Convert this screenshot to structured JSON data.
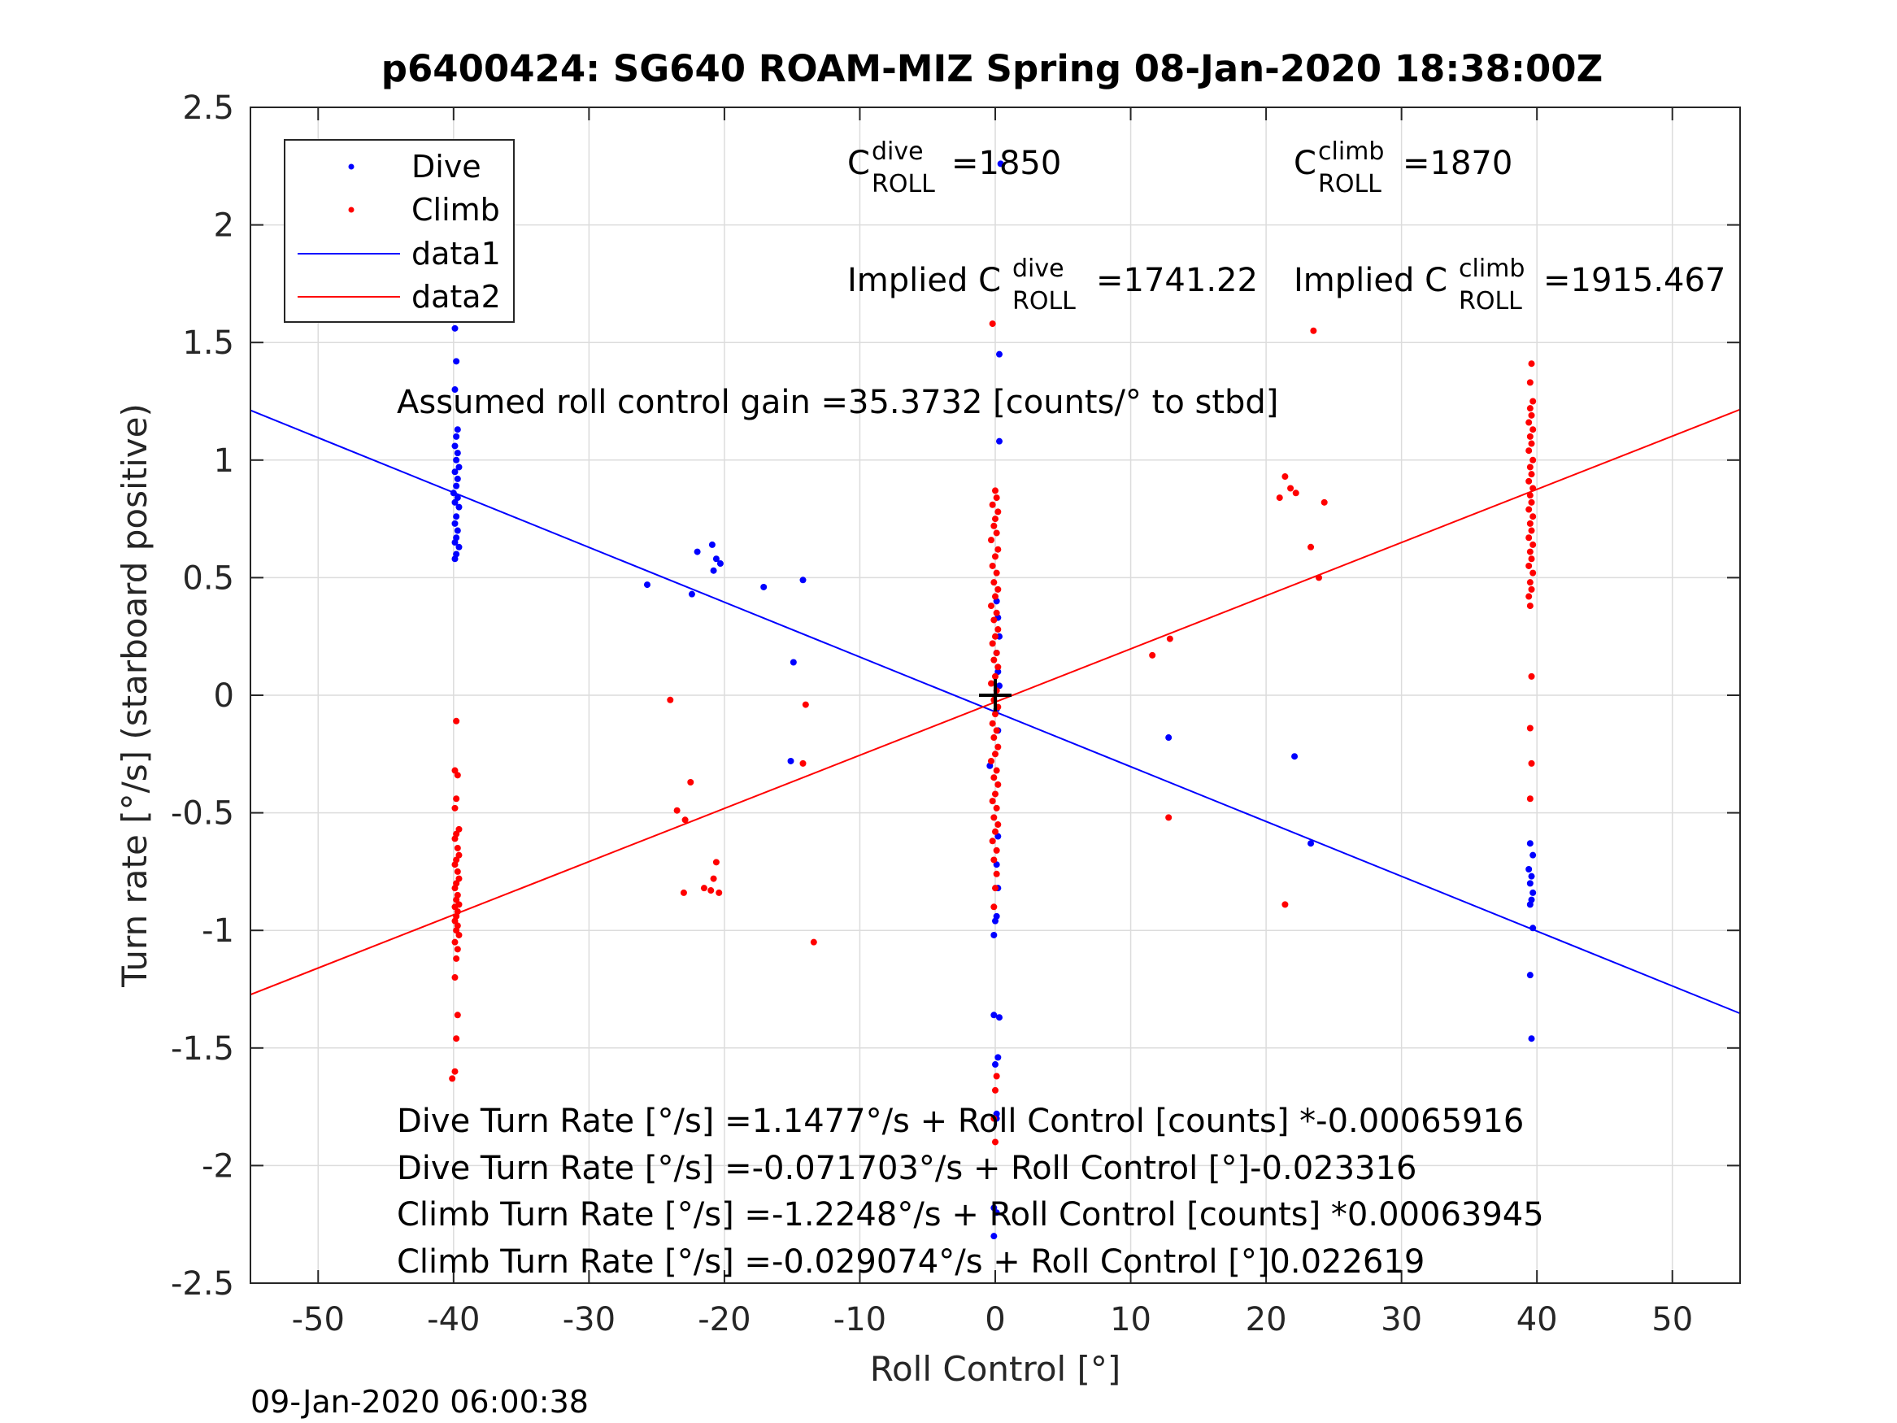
{
  "chart_data": {
    "type": "scatter",
    "title": "p6400424: SG640 ROAM-MIZ Spring 08-Jan-2020 18:38:00Z",
    "xlabel": "Roll Control [°]",
    "ylabel": "Turn rate [°/s] (starboard positive)",
    "xlim": [
      -55,
      55
    ],
    "ylim": [
      -2.5,
      2.5
    ],
    "xticks": [
      -50,
      -40,
      -30,
      -20,
      -10,
      0,
      10,
      20,
      30,
      40,
      50
    ],
    "yticks": [
      -2.5,
      -2,
      -1.5,
      -1,
      -0.5,
      0,
      0.5,
      1,
      1.5,
      2,
      2.5
    ],
    "xtick_labels": [
      "-50",
      "-40",
      "-30",
      "-20",
      "-10",
      "0",
      "10",
      "20",
      "30",
      "40",
      "50"
    ],
    "ytick_labels": [
      "-2.5",
      "-2",
      "-1.5",
      "-1",
      "-0.5",
      "0",
      "0.5",
      "1",
      "1.5",
      "2",
      "2.5"
    ],
    "grid": true,
    "legend_position": "top-left",
    "colors": {
      "dive": "#0000ff",
      "climb": "#ff0000",
      "marker": "#000000"
    },
    "series": [
      {
        "name": "Dive",
        "kind": "points",
        "points": [
          [
            -39.9,
            1.56
          ],
          [
            -39.8,
            1.42
          ],
          [
            -39.9,
            1.3
          ],
          [
            -39.7,
            1.13
          ],
          [
            -39.8,
            1.1
          ],
          [
            -39.9,
            1.06
          ],
          [
            -39.7,
            1.03
          ],
          [
            -39.8,
            1.0
          ],
          [
            -39.6,
            0.97
          ],
          [
            -39.9,
            0.95
          ],
          [
            -39.7,
            0.92
          ],
          [
            -39.8,
            0.89
          ],
          [
            -40.0,
            0.86
          ],
          [
            -39.7,
            0.84
          ],
          [
            -39.9,
            0.82
          ],
          [
            -39.6,
            0.8
          ],
          [
            -39.8,
            0.76
          ],
          [
            -39.9,
            0.73
          ],
          [
            -39.7,
            0.7
          ],
          [
            -39.8,
            0.67
          ],
          [
            -39.9,
            0.65
          ],
          [
            -39.6,
            0.63
          ],
          [
            -39.8,
            0.6
          ],
          [
            -39.9,
            0.58
          ],
          [
            -25.7,
            0.47
          ],
          [
            -22.4,
            0.43
          ],
          [
            -22.0,
            0.61
          ],
          [
            -20.9,
            0.64
          ],
          [
            -20.6,
            0.58
          ],
          [
            -20.3,
            0.56
          ],
          [
            -20.8,
            0.53
          ],
          [
            -17.1,
            0.46
          ],
          [
            -14.2,
            0.49
          ],
          [
            -14.9,
            0.14
          ],
          [
            -15.1,
            -0.28
          ],
          [
            0.4,
            2.26
          ],
          [
            0.3,
            1.45
          ],
          [
            0.3,
            1.08
          ],
          [
            0.1,
            0.4
          ],
          [
            0.2,
            0.33
          ],
          [
            0.3,
            0.25
          ],
          [
            0.1,
            0.18
          ],
          [
            0.2,
            0.1
          ],
          [
            0.3,
            0.04
          ],
          [
            0.1,
            -0.06
          ],
          [
            0.2,
            -0.15
          ],
          [
            -0.4,
            -0.3
          ],
          [
            0.2,
            -0.6
          ],
          [
            0.1,
            -0.72
          ],
          [
            0.2,
            -0.82
          ],
          [
            0.0,
            -0.96
          ],
          [
            0.1,
            -0.94
          ],
          [
            -0.1,
            -1.02
          ],
          [
            -0.1,
            -1.36
          ],
          [
            0.3,
            -1.37
          ],
          [
            0.2,
            -1.54
          ],
          [
            0.0,
            -1.57
          ],
          [
            0.1,
            -1.78
          ],
          [
            0.1,
            -1.8
          ],
          [
            -0.1,
            -2.18
          ],
          [
            0.1,
            -2.2
          ],
          [
            -0.1,
            -2.3
          ],
          [
            12.8,
            -0.18
          ],
          [
            22.1,
            -0.26
          ],
          [
            23.3,
            -0.63
          ],
          [
            39.5,
            -0.63
          ],
          [
            39.7,
            -0.68
          ],
          [
            39.4,
            -0.74
          ],
          [
            39.6,
            -0.77
          ],
          [
            39.5,
            -0.8
          ],
          [
            39.7,
            -0.84
          ],
          [
            39.6,
            -0.87
          ],
          [
            39.5,
            -0.89
          ],
          [
            39.7,
            -0.99
          ],
          [
            39.5,
            -1.19
          ],
          [
            39.6,
            -1.46
          ]
        ]
      },
      {
        "name": "Climb",
        "kind": "points",
        "points": [
          [
            -39.8,
            -0.11
          ],
          [
            -39.9,
            -0.32
          ],
          [
            -39.7,
            -0.34
          ],
          [
            -39.8,
            -0.44
          ],
          [
            -39.9,
            -0.48
          ],
          [
            -39.6,
            -0.57
          ],
          [
            -39.8,
            -0.59
          ],
          [
            -39.9,
            -0.61
          ],
          [
            -39.7,
            -0.65
          ],
          [
            -39.6,
            -0.68
          ],
          [
            -39.8,
            -0.7
          ],
          [
            -39.9,
            -0.72
          ],
          [
            -39.7,
            -0.75
          ],
          [
            -39.6,
            -0.78
          ],
          [
            -39.8,
            -0.8
          ],
          [
            -39.9,
            -0.82
          ],
          [
            -39.7,
            -0.85
          ],
          [
            -39.8,
            -0.87
          ],
          [
            -39.6,
            -0.89
          ],
          [
            -39.9,
            -0.9
          ],
          [
            -39.7,
            -0.92
          ],
          [
            -39.8,
            -0.94
          ],
          [
            -39.9,
            -0.96
          ],
          [
            -39.7,
            -0.98
          ],
          [
            -39.8,
            -1.0
          ],
          [
            -39.6,
            -1.02
          ],
          [
            -39.9,
            -1.05
          ],
          [
            -39.7,
            -1.08
          ],
          [
            -39.8,
            -1.12
          ],
          [
            -39.9,
            -1.2
          ],
          [
            -39.7,
            -1.36
          ],
          [
            -39.8,
            -1.46
          ],
          [
            -39.9,
            -1.6
          ],
          [
            -40.1,
            -1.63
          ],
          [
            -24.0,
            -0.02
          ],
          [
            -23.5,
            -0.49
          ],
          [
            -22.9,
            -0.53
          ],
          [
            -22.5,
            -0.37
          ],
          [
            -23.0,
            -0.84
          ],
          [
            -21.5,
            -0.82
          ],
          [
            -21.0,
            -0.83
          ],
          [
            -20.8,
            -0.78
          ],
          [
            -20.6,
            -0.71
          ],
          [
            -20.4,
            -0.84
          ],
          [
            -14.2,
            -0.29
          ],
          [
            -14.0,
            -0.04
          ],
          [
            -13.4,
            -1.05
          ],
          [
            -0.2,
            1.58
          ],
          [
            0.0,
            0.87
          ],
          [
            0.1,
            0.84
          ],
          [
            -0.2,
            0.81
          ],
          [
            0.2,
            0.78
          ],
          [
            0.0,
            0.75
          ],
          [
            -0.1,
            0.72
          ],
          [
            0.1,
            0.69
          ],
          [
            -0.3,
            0.66
          ],
          [
            0.2,
            0.62
          ],
          [
            0.0,
            0.59
          ],
          [
            -0.2,
            0.55
          ],
          [
            0.1,
            0.52
          ],
          [
            -0.1,
            0.48
          ],
          [
            0.2,
            0.45
          ],
          [
            0.0,
            0.42
          ],
          [
            -0.3,
            0.38
          ],
          [
            0.1,
            0.35
          ],
          [
            -0.1,
            0.32
          ],
          [
            0.2,
            0.28
          ],
          [
            0.0,
            0.25
          ],
          [
            -0.2,
            0.22
          ],
          [
            0.1,
            0.18
          ],
          [
            -0.1,
            0.15
          ],
          [
            0.2,
            0.12
          ],
          [
            0.0,
            0.08
          ],
          [
            -0.3,
            0.05
          ],
          [
            0.1,
            0.02
          ],
          [
            -0.1,
            -0.02
          ],
          [
            0.2,
            -0.05
          ],
          [
            0.0,
            -0.08
          ],
          [
            -0.2,
            -0.12
          ],
          [
            0.1,
            -0.15
          ],
          [
            -0.1,
            -0.18
          ],
          [
            0.2,
            -0.22
          ],
          [
            0.0,
            -0.25
          ],
          [
            -0.3,
            -0.28
          ],
          [
            0.1,
            -0.32
          ],
          [
            -0.1,
            -0.35
          ],
          [
            0.2,
            -0.38
          ],
          [
            0.0,
            -0.42
          ],
          [
            -0.2,
            -0.45
          ],
          [
            0.1,
            -0.48
          ],
          [
            -0.1,
            -0.52
          ],
          [
            0.2,
            -0.55
          ],
          [
            0.0,
            -0.58
          ],
          [
            -0.2,
            -0.62
          ],
          [
            0.1,
            -0.66
          ],
          [
            -0.1,
            -0.7
          ],
          [
            0.1,
            -0.76
          ],
          [
            0.0,
            -0.82
          ],
          [
            -0.1,
            -0.9
          ],
          [
            0.1,
            -1.62
          ],
          [
            0.0,
            -1.68
          ],
          [
            -0.1,
            -1.8
          ],
          [
            0.0,
            -1.9
          ],
          [
            11.6,
            0.17
          ],
          [
            12.9,
            0.24
          ],
          [
            12.8,
            -0.52
          ],
          [
            21.0,
            0.84
          ],
          [
            21.4,
            0.93
          ],
          [
            21.8,
            0.88
          ],
          [
            22.2,
            0.86
          ],
          [
            24.3,
            0.82
          ],
          [
            23.5,
            1.55
          ],
          [
            23.3,
            0.63
          ],
          [
            23.9,
            0.5
          ],
          [
            21.4,
            -0.89
          ],
          [
            39.6,
            1.41
          ],
          [
            39.5,
            1.33
          ],
          [
            39.7,
            1.25
          ],
          [
            39.5,
            1.22
          ],
          [
            39.6,
            1.19
          ],
          [
            39.4,
            1.16
          ],
          [
            39.7,
            1.13
          ],
          [
            39.5,
            1.1
          ],
          [
            39.6,
            1.07
          ],
          [
            39.4,
            1.04
          ],
          [
            39.7,
            1.0
          ],
          [
            39.5,
            0.97
          ],
          [
            39.6,
            0.94
          ],
          [
            39.4,
            0.91
          ],
          [
            39.7,
            0.88
          ],
          [
            39.5,
            0.85
          ],
          [
            39.6,
            0.82
          ],
          [
            39.4,
            0.79
          ],
          [
            39.7,
            0.76
          ],
          [
            39.5,
            0.73
          ],
          [
            39.6,
            0.7
          ],
          [
            39.4,
            0.67
          ],
          [
            39.7,
            0.64
          ],
          [
            39.5,
            0.61
          ],
          [
            39.6,
            0.58
          ],
          [
            39.4,
            0.55
          ],
          [
            39.7,
            0.52
          ],
          [
            39.5,
            0.48
          ],
          [
            39.6,
            0.45
          ],
          [
            39.4,
            0.42
          ],
          [
            39.5,
            0.38
          ],
          [
            39.6,
            0.08
          ],
          [
            39.5,
            -0.14
          ],
          [
            39.6,
            -0.29
          ],
          [
            39.5,
            -0.44
          ]
        ]
      },
      {
        "name": "data1",
        "kind": "line",
        "x": [
          -55,
          55
        ],
        "y": [
          1.2117,
          -1.3529
        ]
      },
      {
        "name": "data2",
        "kind": "line",
        "x": [
          -55,
          55
        ],
        "y": [
          -1.2731,
          1.215
        ]
      }
    ],
    "origin_marker": [
      0,
      0
    ],
    "annotations": {
      "c_dive_label": "C",
      "c_dive_sup": "dive",
      "c_dive_sub": "ROLL",
      "c_dive_value": "=1850",
      "c_climb_label": "C",
      "c_climb_sup": "climb",
      "c_climb_sub": "ROLL",
      "c_climb_value": "=1870",
      "implied_dive_label": "Implied C",
      "implied_dive_sup": "dive",
      "implied_dive_sub": "ROLL",
      "implied_dive_value": "=1741.22",
      "implied_climb_label": "Implied C",
      "implied_climb_sup": "climb",
      "implied_climb_sub": "ROLL",
      "implied_climb_value": "=1915.467",
      "gain": "Assumed roll control gain =35.3732 [counts/° to stbd]",
      "eq1": "Dive Turn Rate [°/s] =1.1477°/s + Roll Control [counts] *-0.00065916",
      "eq2": "Dive Turn Rate [°/s] =-0.071703°/s + Roll Control [°]-0.023316",
      "eq3": "Climb Turn Rate [°/s] =-1.2248°/s + Roll Control [counts] *0.00063945",
      "eq4": "Climb Turn Rate [°/s] =-0.029074°/s + Roll Control [°]0.022619"
    },
    "timestamp": "09-Jan-2020 06:00:38"
  }
}
